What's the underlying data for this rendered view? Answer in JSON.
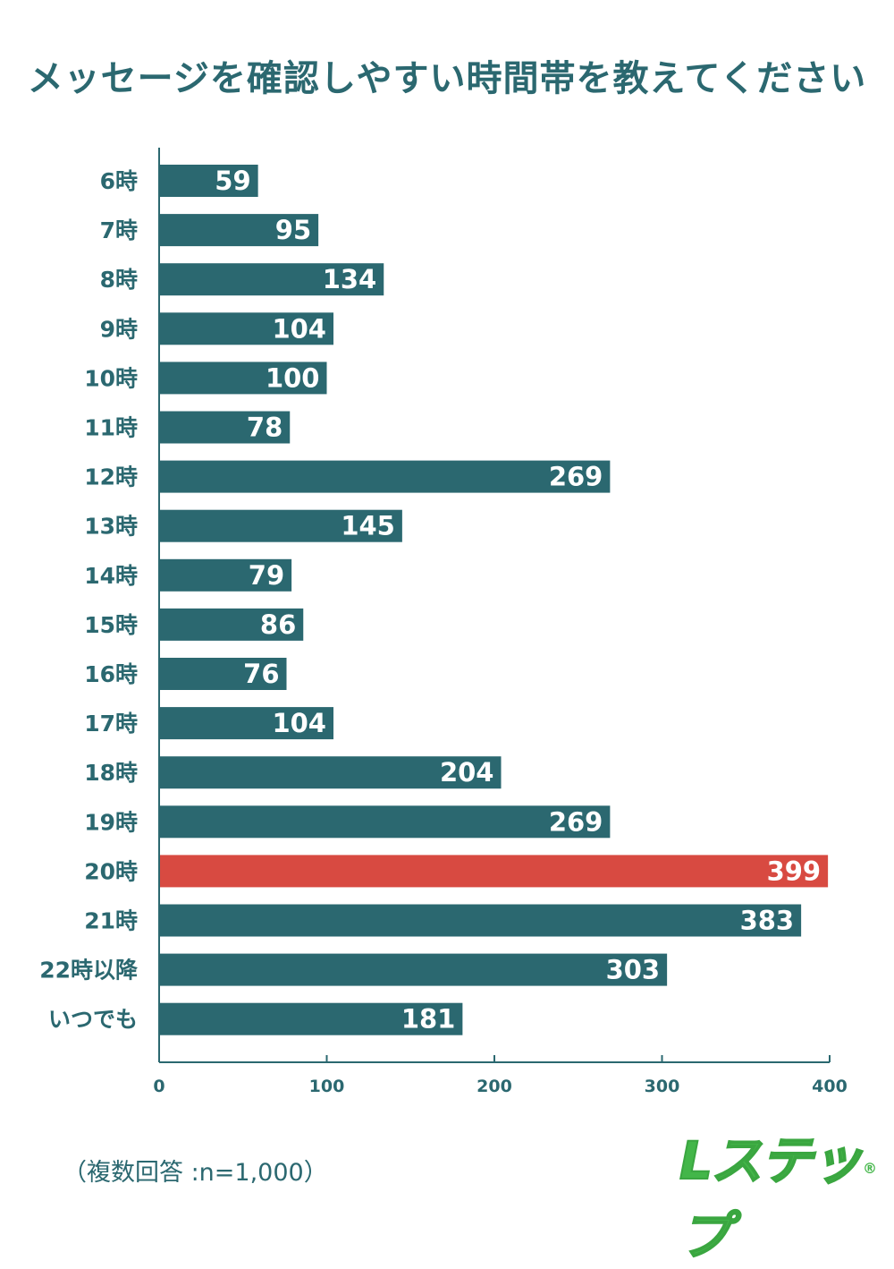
{
  "chart_data": {
    "type": "bar",
    "orientation": "horizontal",
    "title": "メッセージを確認しやすい時間帯を教えてください",
    "categories": [
      "6時",
      "7時",
      "8時",
      "9時",
      "10時",
      "11時",
      "12時",
      "13時",
      "14時",
      "15時",
      "16時",
      "17時",
      "18時",
      "19時",
      "20時",
      "21時",
      "22時以降",
      "いつでも"
    ],
    "values": [
      59,
      95,
      134,
      104,
      100,
      78,
      269,
      145,
      79,
      86,
      76,
      104,
      204,
      269,
      399,
      383,
      303,
      181
    ],
    "highlight_category": "20時",
    "xlim": [
      0,
      400
    ],
    "xticks": [
      0,
      100,
      200,
      300,
      400
    ],
    "xlabel": "",
    "ylabel": "",
    "grid": false
  },
  "colors": {
    "bar": "#2b6870",
    "highlight": "#d84a41",
    "text": "#2b6870",
    "logo": "#43b649"
  },
  "footnote": "（複数回答 :n=1,000）",
  "logo": {
    "text": "Lステップ",
    "mark": "®"
  }
}
